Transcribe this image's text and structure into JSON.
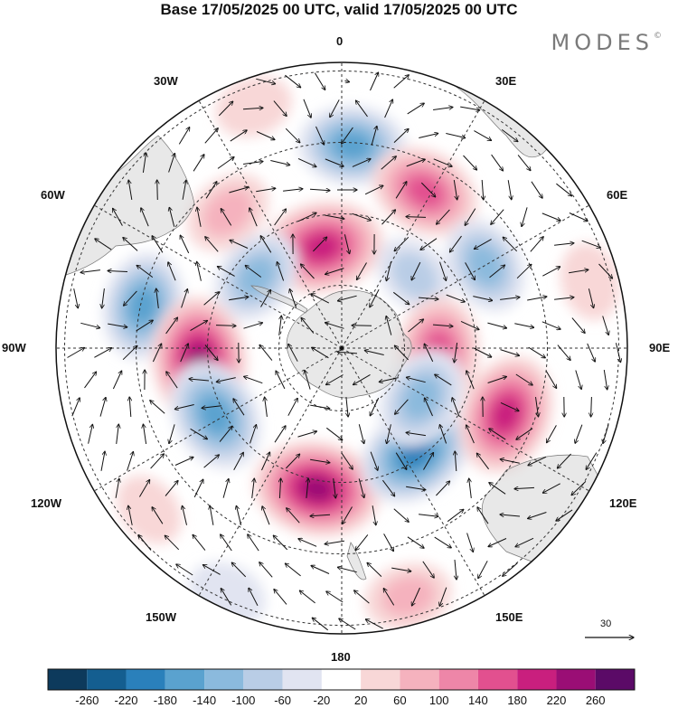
{
  "title": "Base 17/05/2025 00 UTC, valid 17/05/2025 00 UTC",
  "brand": "MODES",
  "brand_mark": "©",
  "longitude_labels": {
    "n0": "0",
    "n30e": "30E",
    "n60e": "60E",
    "n90e": "90E",
    "n120e": "120E",
    "n150e": "150E",
    "n180": "180",
    "n150w": "150W",
    "n120w": "120W",
    "n90w": "90W",
    "n60w": "60W",
    "n30w": "30W"
  },
  "reference_vector": {
    "label": "30"
  },
  "colorbar": {
    "tick_labels": [
      "-260",
      "-220",
      "-180",
      "-140",
      "-100",
      "-60",
      "-20",
      "20",
      "60",
      "100",
      "140",
      "180",
      "220",
      "260"
    ],
    "colors": [
      "#0d3a5c",
      "#145e90",
      "#2a80bb",
      "#5aa2cf",
      "#8bbadd",
      "#b9cde6",
      "#e1e4f1",
      "#ffffff",
      "#f8d7d7",
      "#f5b2be",
      "#ee86a8",
      "#e2508f",
      "#c91f7e",
      "#9a0e75",
      "#5b0a67"
    ]
  },
  "anomalies": [
    {
      "lon": 3,
      "r": 0.71,
      "value": -150
    },
    {
      "lon": -11,
      "r": 0.36,
      "value": 210
    },
    {
      "lon": 28,
      "r": 0.62,
      "value": 160
    },
    {
      "lon": 60,
      "r": 0.58,
      "value": -110
    },
    {
      "lon": 45,
      "r": 0.36,
      "value": -60
    },
    {
      "lon": -40,
      "r": 0.62,
      "value": 80
    },
    {
      "lon": -50,
      "r": 0.39,
      "value": -110
    },
    {
      "lon": -78,
      "r": 0.71,
      "value": -150
    },
    {
      "lon": -95,
      "r": 0.5,
      "value": 230
    },
    {
      "lon": -118,
      "r": 0.5,
      "value": -170
    },
    {
      "lon": -170,
      "r": 0.5,
      "value": 230
    },
    {
      "lon": -155,
      "r": 0.95,
      "value": -40
    },
    {
      "lon": 145,
      "r": 0.45,
      "value": -190
    },
    {
      "lon": 112,
      "r": 0.62,
      "value": 200
    },
    {
      "lon": 92,
      "r": 0.34,
      "value": 160
    },
    {
      "lon": 122,
      "r": 0.33,
      "value": -130
    },
    {
      "lon": 165,
      "r": 0.9,
      "value": 70
    },
    {
      "lon": -20,
      "r": 0.9,
      "value": 30
    },
    {
      "lon": 75,
      "r": 0.9,
      "value": 30
    },
    {
      "lon": -130,
      "r": 0.88,
      "value": 20
    }
  ]
}
